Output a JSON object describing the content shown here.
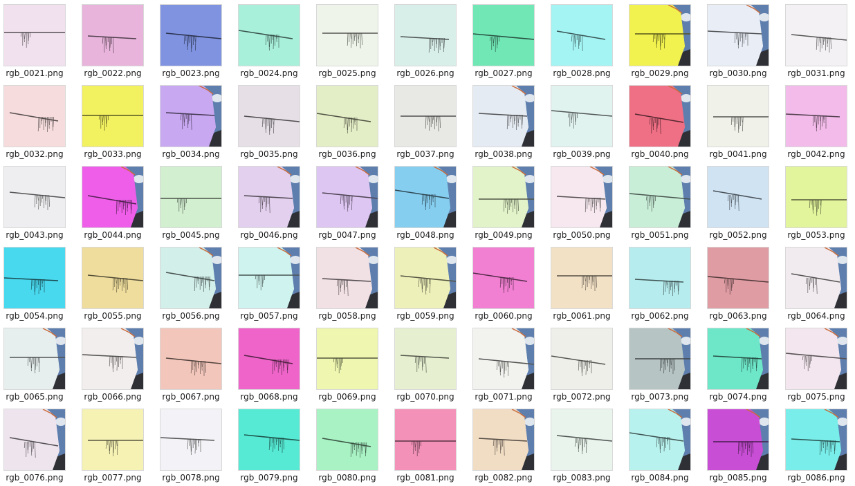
{
  "files": [
    {
      "name": "rgb_0021.png",
      "color": "#f1e1ee",
      "variant": "plain"
    },
    {
      "name": "rgb_0022.png",
      "color": "#e8b4dc",
      "variant": "plain"
    },
    {
      "name": "rgb_0023.png",
      "color": "#7f93e0",
      "variant": "plain"
    },
    {
      "name": "rgb_0024.png",
      "color": "#a8f0da",
      "variant": "plain"
    },
    {
      "name": "rgb_0025.png",
      "color": "#eef4e9",
      "variant": "plain"
    },
    {
      "name": "rgb_0026.png",
      "color": "#d8eee8",
      "variant": "plain"
    },
    {
      "name": "rgb_0027.png",
      "color": "#71e7b6",
      "variant": "plain"
    },
    {
      "name": "rgb_0028.png",
      "color": "#a4f4f4",
      "variant": "plain"
    },
    {
      "name": "rgb_0029.png",
      "color": "#f1f14f",
      "variant": "sky"
    },
    {
      "name": "rgb_0030.png",
      "color": "#e8edf6",
      "variant": "sky"
    },
    {
      "name": "rgb_0031.png",
      "color": "#f3f1f3",
      "variant": "plain"
    },
    {
      "name": "rgb_0032.png",
      "color": "#f6dcdc",
      "variant": "plain"
    },
    {
      "name": "rgb_0033.png",
      "color": "#f2f160",
      "variant": "plain"
    },
    {
      "name": "rgb_0034.png",
      "color": "#c9a8f2",
      "variant": "sky"
    },
    {
      "name": "rgb_0035.png",
      "color": "#e6e0e6",
      "variant": "plain"
    },
    {
      "name": "rgb_0036.png",
      "color": "#e4eec6",
      "variant": "plain"
    },
    {
      "name": "rgb_0037.png",
      "color": "#e8e8e4",
      "variant": "plain"
    },
    {
      "name": "rgb_0038.png",
      "color": "#e5ebf2",
      "variant": "sky"
    },
    {
      "name": "rgb_0039.png",
      "color": "#e1f3ef",
      "variant": "plain"
    },
    {
      "name": "rgb_0040.png",
      "color": "#ef6f85",
      "variant": "sky"
    },
    {
      "name": "rgb_0041.png",
      "color": "#f0f1e8",
      "variant": "plain"
    },
    {
      "name": "rgb_0042.png",
      "color": "#f2bbe9",
      "variant": "plain"
    },
    {
      "name": "rgb_0043.png",
      "color": "#eeeef0",
      "variant": "plain"
    },
    {
      "name": "rgb_0044.png",
      "color": "#ee5ee9",
      "variant": "sky"
    },
    {
      "name": "rgb_0045.png",
      "color": "#d2efd0",
      "variant": "plain"
    },
    {
      "name": "rgb_0046.png",
      "color": "#e3d0ee",
      "variant": "sky"
    },
    {
      "name": "rgb_0047.png",
      "color": "#dec6f2",
      "variant": "sky"
    },
    {
      "name": "rgb_0048.png",
      "color": "#86cef0",
      "variant": "sky"
    },
    {
      "name": "rgb_0049.png",
      "color": "#e2f3c9",
      "variant": "sky"
    },
    {
      "name": "rgb_0050.png",
      "color": "#f6e8ee",
      "variant": "sky"
    },
    {
      "name": "rgb_0051.png",
      "color": "#c9eed8",
      "variant": "sky"
    },
    {
      "name": "rgb_0052.png",
      "color": "#cfe3f3",
      "variant": "plain"
    },
    {
      "name": "rgb_0053.png",
      "color": "#e2f59c",
      "variant": "plain"
    },
    {
      "name": "rgb_0054.png",
      "color": "#49d9ee",
      "variant": "plain"
    },
    {
      "name": "rgb_0055.png",
      "color": "#eedd9c",
      "variant": "plain"
    },
    {
      "name": "rgb_0056.png",
      "color": "#d2efe9",
      "variant": "sky"
    },
    {
      "name": "rgb_0057.png",
      "color": "#cff4ef",
      "variant": "sky"
    },
    {
      "name": "rgb_0058.png",
      "color": "#f1e0e4",
      "variant": "sky"
    },
    {
      "name": "rgb_0059.png",
      "color": "#eef0ba",
      "variant": "sky"
    },
    {
      "name": "rgb_0060.png",
      "color": "#f17fd2",
      "variant": "plain"
    },
    {
      "name": "rgb_0061.png",
      "color": "#f3e1c6",
      "variant": "plain"
    },
    {
      "name": "rgb_0062.png",
      "color": "#b6ecee",
      "variant": "plain"
    },
    {
      "name": "rgb_0063.png",
      "color": "#df9ca3",
      "variant": "plain"
    },
    {
      "name": "rgb_0064.png",
      "color": "#f1eaee",
      "variant": "sky"
    },
    {
      "name": "rgb_0065.png",
      "color": "#e6eeee",
      "variant": "sky"
    },
    {
      "name": "rgb_0066.png",
      "color": "#f3eeee",
      "variant": "sky"
    },
    {
      "name": "rgb_0067.png",
      "color": "#f2c6ba",
      "variant": "plain"
    },
    {
      "name": "rgb_0068.png",
      "color": "#ee64c8",
      "variant": "plain"
    },
    {
      "name": "rgb_0069.png",
      "color": "#eef6b0",
      "variant": "plain"
    },
    {
      "name": "rgb_0070.png",
      "color": "#e6f0d0",
      "variant": "plain"
    },
    {
      "name": "rgb_0071.png",
      "color": "#f2f2ef",
      "variant": "sky"
    },
    {
      "name": "rgb_0072.png",
      "color": "#efefe9",
      "variant": "plain"
    },
    {
      "name": "rgb_0073.png",
      "color": "#b6c4c4",
      "variant": "sky"
    },
    {
      "name": "rgb_0074.png",
      "color": "#6ee6c8",
      "variant": "sky"
    },
    {
      "name": "rgb_0075.png",
      "color": "#f3e6ee",
      "variant": "sky"
    },
    {
      "name": "rgb_0076.png",
      "color": "#eee4ee",
      "variant": "sky"
    },
    {
      "name": "rgb_0077.png",
      "color": "#f6f2b4",
      "variant": "plain"
    },
    {
      "name": "rgb_0078.png",
      "color": "#f3f2f6",
      "variant": "plain"
    },
    {
      "name": "rgb_0079.png",
      "color": "#56ead4",
      "variant": "plain"
    },
    {
      "name": "rgb_0080.png",
      "color": "#a8f2c4",
      "variant": "plain"
    },
    {
      "name": "rgb_0081.png",
      "color": "#f391b8",
      "variant": "plain"
    },
    {
      "name": "rgb_0082.png",
      "color": "#f1dcc4",
      "variant": "sky"
    },
    {
      "name": "rgb_0083.png",
      "color": "#e8f4ec",
      "variant": "plain"
    },
    {
      "name": "rgb_0084.png",
      "color": "#b8f2ee",
      "variant": "sky"
    },
    {
      "name": "rgb_0085.png",
      "color": "#c94ed6",
      "variant": "sky"
    },
    {
      "name": "rgb_0086.png",
      "color": "#79ede9",
      "variant": "sky"
    }
  ]
}
